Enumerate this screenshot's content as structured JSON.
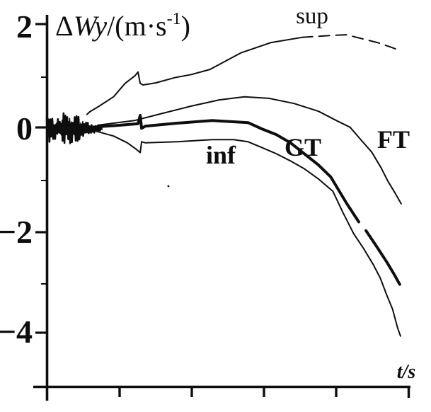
{
  "figure": {
    "description": "Scanned black-and-white line chart of velocity deviation bounds versus time",
    "ink_color": "#0e0e0e",
    "background_color": "#ffffff"
  },
  "chart_data": {
    "type": "line",
    "title": "",
    "xlabel": "t/s",
    "ylabel": "ΔWy/(m·s⁻¹)",
    "x_axis": {
      "label": "t/s",
      "numeric_labels_visible": false,
      "tick_count": 5,
      "x_unit_note": "x given in axis-tick units 0-5; no numeric time labels are printed"
    },
    "y_axis": {
      "label": "ΔWy/(m·s⁻¹)",
      "label_parts": {
        "delta": "Δ",
        "variable": "Wy",
        "unit_open": "/(m·s",
        "unit_sup": "-1",
        "unit_close": ")"
      },
      "tick_labels": [
        "2",
        "0",
        "−2",
        "−4"
      ],
      "tick_values": [
        2,
        0,
        -2,
        -4
      ],
      "minor_tick_values": [
        1,
        -1,
        -3
      ],
      "range": [
        -5,
        2.2
      ]
    },
    "noise_segment": {
      "note": "dense measurement-noise scribble around 0 at the start of all curves",
      "x_start": -0.01,
      "x_end": 0.76,
      "center_value": 0,
      "max_amplitude": 0.33,
      "envelope": [
        [
          -0.01,
          0.3
        ],
        [
          0.06,
          0.22
        ],
        [
          0.14,
          0.18
        ],
        [
          0.22,
          0.32
        ],
        [
          0.34,
          0.3
        ],
        [
          0.44,
          0.26
        ],
        [
          0.52,
          0.15
        ],
        [
          0.62,
          0.1
        ],
        [
          0.7,
          0.06
        ],
        [
          0.76,
          0.04
        ]
      ]
    },
    "series": [
      {
        "name": "sup",
        "label": "sup",
        "role": "upper bound",
        "thick": false,
        "segments": [
          {
            "dash": false,
            "points": [
              [
                0.55,
                0.28
              ],
              [
                0.59,
                0.33
              ],
              [
                0.72,
                0.44
              ],
              [
                0.92,
                0.62
              ],
              [
                1.08,
                0.88
              ],
              [
                1.22,
                1.03
              ],
              [
                1.26,
                1.1
              ],
              [
                1.29,
                0.88
              ],
              [
                1.33,
                0.85
              ],
              [
                1.51,
                0.89
              ],
              [
                1.77,
                0.99
              ],
              [
                2.0,
                1.05
              ],
              [
                2.26,
                1.15
              ],
              [
                2.69,
                1.47
              ],
              [
                3.11,
                1.67
              ],
              [
                3.54,
                1.77
              ]
            ]
          },
          {
            "dash": true,
            "points": [
              [
                3.54,
                1.77
              ],
              [
                3.97,
                1.81
              ],
              [
                4.16,
                1.82
              ],
              [
                4.33,
                1.76
              ],
              [
                4.59,
                1.67
              ],
              [
                4.78,
                1.58
              ],
              [
                4.92,
                1.51
              ]
            ]
          }
        ]
      },
      {
        "name": "FT",
        "label": "FT",
        "role": "curve",
        "thick": false,
        "segments": [
          {
            "dash": false,
            "points": [
              [
                0.7,
                0.07
              ],
              [
                0.92,
                0.11
              ],
              [
                1.21,
                0.16
              ],
              [
                1.6,
                0.3
              ],
              [
                2.0,
                0.44
              ],
              [
                2.39,
                0.56
              ],
              [
                2.74,
                0.62
              ],
              [
                3.08,
                0.59
              ],
              [
                3.43,
                0.49
              ],
              [
                3.77,
                0.34
              ],
              [
                4.02,
                0.16
              ],
              [
                4.21,
                0.03
              ],
              [
                4.34,
                -0.18
              ],
              [
                4.51,
                -0.45
              ],
              [
                4.64,
                -0.75
              ],
              [
                4.73,
                -1.0
              ],
              [
                4.83,
                -1.23
              ],
              [
                4.92,
                -1.45
              ]
            ]
          }
        ]
      },
      {
        "name": "GT",
        "label": "GT",
        "role": "main curve (thick)",
        "thick": true,
        "segments": [
          {
            "dash": false,
            "points": [
              [
                0.69,
                0.04
              ],
              [
                1.01,
                0.07
              ],
              [
                1.26,
                0.1
              ],
              [
                1.29,
                0.26
              ],
              [
                1.31,
                0.01
              ],
              [
                1.36,
                0.05
              ],
              [
                1.8,
                0.11
              ],
              [
                2.29,
                0.16
              ],
              [
                2.79,
                0.12
              ],
              [
                2.98,
                0.0
              ],
              [
                3.18,
                -0.11
              ],
              [
                3.38,
                -0.27
              ],
              [
                3.57,
                -0.48
              ],
              [
                3.77,
                -0.7
              ],
              [
                3.94,
                -0.93
              ],
              [
                4.16,
                -1.44
              ],
              [
                4.33,
                -1.8
              ]
            ]
          },
          {
            "dash": false,
            "points": [
              [
                4.43,
                -1.97
              ],
              [
                4.46,
                -2.03
              ],
              [
                4.59,
                -2.3
              ],
              [
                4.72,
                -2.58
              ],
              [
                4.82,
                -2.81
              ],
              [
                4.9,
                -3.01
              ]
            ]
          }
        ]
      },
      {
        "name": "inf",
        "label": "inf",
        "role": "lower bound",
        "thick": false,
        "segments": [
          {
            "dash": false,
            "points": [
              [
                0.69,
                -0.05
              ],
              [
                0.92,
                -0.14
              ],
              [
                1.11,
                -0.27
              ],
              [
                1.24,
                -0.4
              ],
              [
                1.29,
                -0.46
              ],
              [
                1.31,
                -0.25
              ],
              [
                1.36,
                -0.27
              ],
              [
                1.8,
                -0.25
              ],
              [
                2.29,
                -0.21
              ],
              [
                2.59,
                -0.21
              ],
              [
                2.79,
                -0.25
              ],
              [
                2.98,
                -0.36
              ],
              [
                3.18,
                -0.48
              ],
              [
                3.38,
                -0.62
              ],
              [
                3.57,
                -0.77
              ],
              [
                3.77,
                -0.97
              ],
              [
                3.97,
                -1.21
              ],
              [
                4.11,
                -1.62
              ],
              [
                4.26,
                -2.03
              ],
              [
                4.39,
                -2.3
              ],
              [
                4.53,
                -2.62
              ],
              [
                4.63,
                -2.89
              ],
              [
                4.72,
                -3.22
              ],
              [
                4.8,
                -3.49
              ],
              [
                4.87,
                -3.85
              ],
              [
                4.91,
                -4.01
              ]
            ]
          }
        ]
      }
    ],
    "legend_position": "labels next to curves"
  }
}
